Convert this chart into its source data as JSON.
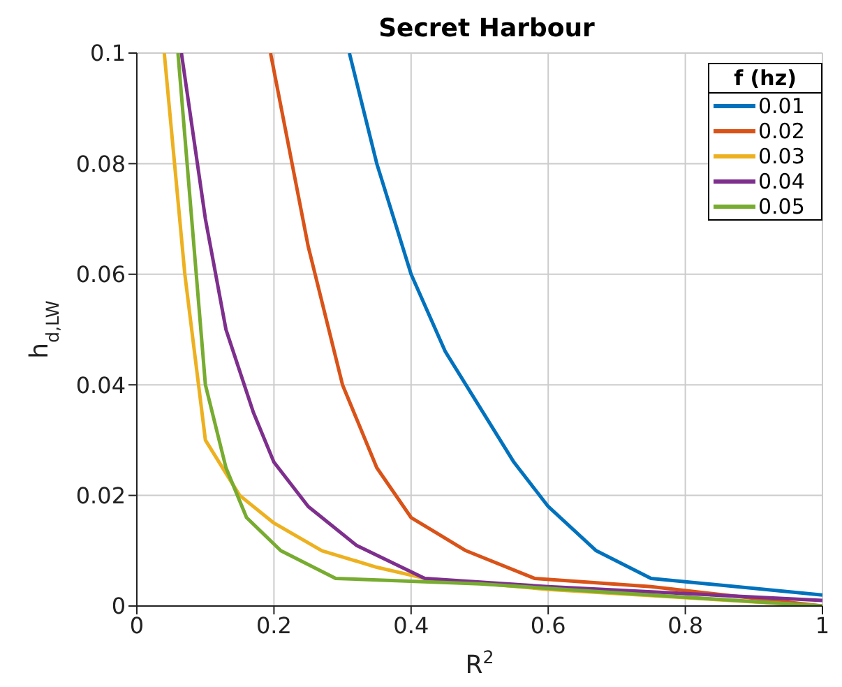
{
  "chart_data": {
    "type": "line",
    "title": "Secret Harbour",
    "xlabel": "R$^{2}$",
    "ylabel": "h$_{d,LW}$",
    "legend_title": "f (hz)",
    "xlim": [
      0,
      1
    ],
    "ylim": [
      0,
      0.1
    ],
    "xticks": [
      0,
      0.2,
      0.4,
      0.6,
      0.8,
      1
    ],
    "yticks": [
      0,
      0.02,
      0.04,
      0.06,
      0.08,
      0.1
    ],
    "grid": true,
    "legend": "top right",
    "marker": "none",
    "line_style": "solid",
    "series": [
      {
        "name": "0.01",
        "color": "#0072bd",
        "x": [
          0.31,
          0.35,
          0.4,
          0.45,
          0.5,
          0.55,
          0.6,
          0.67,
          0.75,
          1.0
        ],
        "values": [
          0.1,
          0.08,
          0.06,
          0.046,
          0.036,
          0.026,
          0.018,
          0.01,
          0.005,
          0.002
        ]
      },
      {
        "name": "0.02",
        "color": "#d95319",
        "x": [
          0.195,
          0.25,
          0.3,
          0.35,
          0.4,
          0.48,
          0.58,
          0.75,
          1.0
        ],
        "values": [
          0.1,
          0.065,
          0.04,
          0.025,
          0.016,
          0.01,
          0.005,
          0.0035,
          0
        ]
      },
      {
        "name": "0.03",
        "color": "#edb120",
        "x": [
          0.04,
          0.07,
          0.1,
          0.15,
          0.2,
          0.27,
          0.35,
          0.42,
          0.6,
          1.0
        ],
        "values": [
          0.1,
          0.06,
          0.03,
          0.02,
          0.015,
          0.01,
          0.007,
          0.005,
          0.003,
          0
        ]
      },
      {
        "name": "0.04",
        "color": "#7e2f8e",
        "x": [
          0.065,
          0.1,
          0.13,
          0.17,
          0.2,
          0.25,
          0.32,
          0.42,
          0.6,
          1.0
        ],
        "values": [
          0.1,
          0.07,
          0.05,
          0.035,
          0.026,
          0.018,
          0.011,
          0.005,
          0.0035,
          0.001
        ]
      },
      {
        "name": "0.05",
        "color": "#77ac30",
        "x": [
          0.06,
          0.08,
          0.1,
          0.13,
          0.16,
          0.21,
          0.29,
          0.5,
          1.0
        ],
        "values": [
          0.1,
          0.07,
          0.04,
          0.025,
          0.016,
          0.01,
          0.005,
          0.004,
          0
        ]
      }
    ]
  }
}
